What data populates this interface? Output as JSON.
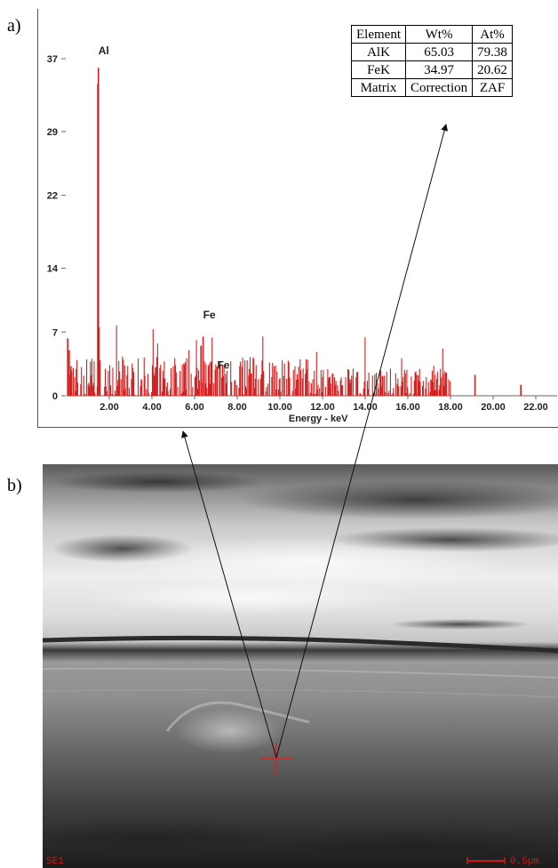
{
  "panel_labels": {
    "a": "a)",
    "b": "b)"
  },
  "chart_data": {
    "type": "bar",
    "title": "",
    "xlabel": "Energy - keV",
    "ylabel": "",
    "xlim": [
      0,
      23
    ],
    "ylim": [
      0,
      37
    ],
    "x_ticks": [
      "2.00",
      "4.00",
      "6.00",
      "8.00",
      "10.00",
      "12.00",
      "14.00",
      "16.00",
      "18.00",
      "20.00",
      "22.00"
    ],
    "x_tick_values": [
      2,
      4,
      6,
      8,
      10,
      12,
      14,
      16,
      18,
      20,
      22
    ],
    "y_ticks": [
      "0",
      "7",
      "14",
      "22",
      "29",
      "37"
    ],
    "y_tick_values": [
      0,
      7,
      14,
      22,
      29,
      37
    ],
    "bar_color": "#d42020",
    "peak_labels": [
      {
        "text": "Al",
        "x": 1.49,
        "y": 37.5
      },
      {
        "text": "Fe",
        "x": 6.4,
        "y": 8.5
      },
      {
        "text": "Fe",
        "x": 7.06,
        "y": 3.0
      }
    ],
    "peaks": [
      {
        "x": 1.49,
        "y": 36.0
      },
      {
        "x": 1.46,
        "y": 34.2
      },
      {
        "x": 1.52,
        "y": 7.5
      },
      {
        "x": 6.4,
        "y": 6.5
      },
      {
        "x": 6.3,
        "y": 5.5
      },
      {
        "x": 7.06,
        "y": 3.2
      },
      {
        "x": 0.05,
        "y": 6.3
      },
      {
        "x": 0.12,
        "y": 5.0
      },
      {
        "x": 0.2,
        "y": 3.2
      },
      {
        "x": 19.15,
        "y": 2.3
      },
      {
        "x": 21.3,
        "y": 1.2
      }
    ],
    "noise_range": {
      "x_start": 0.1,
      "x_end": 18.0,
      "mean_level": 1.8
    }
  },
  "eds_table": {
    "headers": [
      "Element",
      "Wt%",
      "At%"
    ],
    "rows": [
      [
        "AlK",
        "65.03",
        "79.38"
      ],
      [
        "FeK",
        "34.97",
        "20.62"
      ],
      [
        "Matrix",
        "Correction",
        "ZAF"
      ]
    ]
  },
  "sem": {
    "detector_label": "SE1",
    "scale_bar_label": "0.5µm"
  }
}
